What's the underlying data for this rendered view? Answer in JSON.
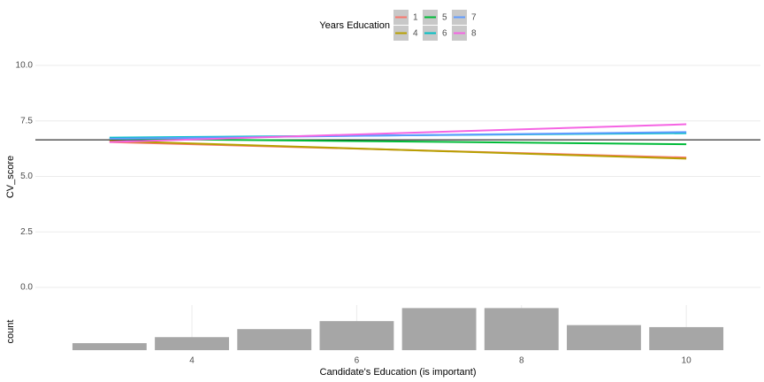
{
  "chart_data": [
    {
      "type": "line",
      "ylabel": "CV_score",
      "legend_title": "Years Education",
      "x": [
        3,
        10
      ],
      "xlim": [
        2.1,
        10.9
      ],
      "ylim": [
        -0.4,
        10.6
      ],
      "yticks": [
        {
          "value": 0,
          "label": "0.0"
        },
        2.5,
        {
          "value": 5,
          "label": "5.0"
        },
        7.5,
        {
          "value": 10,
          "label": "10.0"
        }
      ],
      "grid": true,
      "hline": 6.65,
      "series": [
        {
          "name": "1",
          "color": "#F8766D",
          "values": [
            6.55,
            5.85
          ]
        },
        {
          "name": "4",
          "color": "#B79F00",
          "values": [
            6.6,
            5.8
          ]
        },
        {
          "name": "5",
          "color": "#00BA38",
          "values": [
            6.7,
            6.45
          ]
        },
        {
          "name": "6",
          "color": "#00BFC4",
          "values": [
            6.75,
            6.95
          ]
        },
        {
          "name": "7",
          "color": "#619CFF",
          "values": [
            6.7,
            7.0
          ]
        },
        {
          "name": "8",
          "color": "#F564E3",
          "values": [
            6.55,
            7.35
          ]
        }
      ]
    },
    {
      "type": "bar",
      "ylabel": "count",
      "xlabel": "Candidate's Education (is important)",
      "x": [
        3,
        4,
        5,
        6,
        7,
        8,
        9,
        10
      ],
      "values": [
        7,
        13,
        21,
        29,
        42,
        42,
        25,
        23
      ],
      "color": "#A6A6A6",
      "xlim": [
        2.1,
        10.9
      ],
      "ylim": [
        0,
        45
      ],
      "xticks": [
        4,
        6,
        8,
        10
      ],
      "grid": true
    }
  ]
}
